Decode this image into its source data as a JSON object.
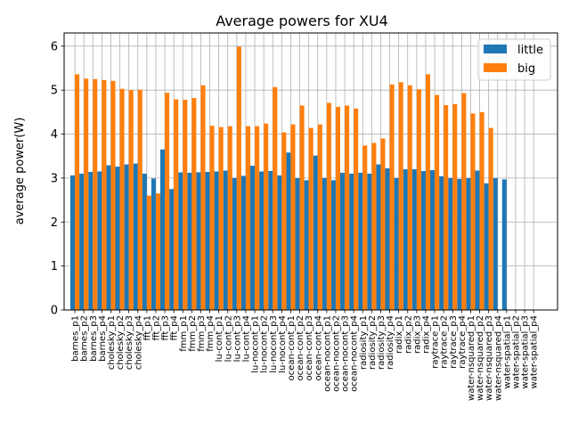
{
  "chart_data": {
    "type": "bar",
    "title": "Average powers for XU4",
    "xlabel": "",
    "ylabel": "average power(W)",
    "ylim": [
      0,
      6.3
    ],
    "yticks": [
      0,
      1,
      2,
      3,
      4,
      5,
      6
    ],
    "grid": true,
    "legend_position": "top-right",
    "categories": [
      "barnes_p1",
      "barnes_p2",
      "barnes_p3",
      "barnes_p4",
      "cholesky_p1",
      "cholesky_p2",
      "cholesky_p3",
      "cholesky_p4",
      "fft_p1",
      "fft_p2",
      "fft_p3",
      "fft_p4",
      "fmm_p1",
      "fmm_p2",
      "fmm_p3",
      "fmm_p4",
      "lu-cont_p1",
      "lu-cont_p2",
      "lu-cont_p3",
      "lu-cont_p4",
      "lu-nocont_p1",
      "lu-nocont_p2",
      "lu-nocont_p3",
      "lu-nocont_p4",
      "ocean-cont_p1",
      "ocean-cont_p2",
      "ocean-cont_p3",
      "ocean-cont_p4",
      "ocean-nocont_p1",
      "ocean-nocont_p2",
      "ocean-nocont_p3",
      "ocean-nocont_p4",
      "radiosity_p1",
      "radiosity_p2",
      "radiosity_p3",
      "radiosity_p4",
      "radix_p1",
      "radix_p2",
      "radix_p3",
      "radix_p4",
      "raytrace_p1",
      "raytrace_p2",
      "raytrace_p3",
      "raytrace_p4",
      "water-nsquared_p1",
      "water-nsquared_p2",
      "water-nsquared_p3",
      "water-nsquared_p4",
      "water-spatial_p1",
      "water-spatial_p2",
      "water-spatial_p3",
      "water-spatial_p4"
    ],
    "series": [
      {
        "name": "little",
        "color": "#1f77b4",
        "values": [
          3.06,
          3.1,
          3.14,
          3.15,
          3.29,
          3.26,
          3.31,
          3.33,
          3.1,
          2.99,
          3.65,
          2.75,
          3.13,
          3.12,
          3.13,
          3.14,
          3.15,
          3.17,
          3.0,
          3.05,
          3.28,
          3.15,
          3.16,
          3.06,
          3.58,
          3.0,
          2.95,
          3.51,
          3.0,
          2.95,
          3.12,
          3.1,
          3.12,
          3.1,
          3.31,
          3.22,
          3.0,
          3.2,
          3.2,
          3.16,
          3.18,
          3.04,
          3.0,
          2.98,
          3.0,
          3.17,
          2.88,
          3.0,
          2.97,
          0,
          0,
          0
        ]
      },
      {
        "name": "big",
        "color": "#ff7f0e",
        "values": [
          5.36,
          5.26,
          5.25,
          5.23,
          5.21,
          5.03,
          5.0,
          5.01,
          2.6,
          2.65,
          4.94,
          4.79,
          4.78,
          4.82,
          5.11,
          4.19,
          4.16,
          4.18,
          5.99,
          4.18,
          4.18,
          4.24,
          5.07,
          4.04,
          4.22,
          4.65,
          4.14,
          4.22,
          4.71,
          4.62,
          4.65,
          4.58,
          3.74,
          3.8,
          3.9,
          5.13,
          5.18,
          5.11,
          5.02,
          5.36,
          4.89,
          4.66,
          4.68,
          4.93,
          4.47,
          4.5,
          4.14,
          0,
          0,
          0,
          0,
          0
        ]
      }
    ]
  }
}
